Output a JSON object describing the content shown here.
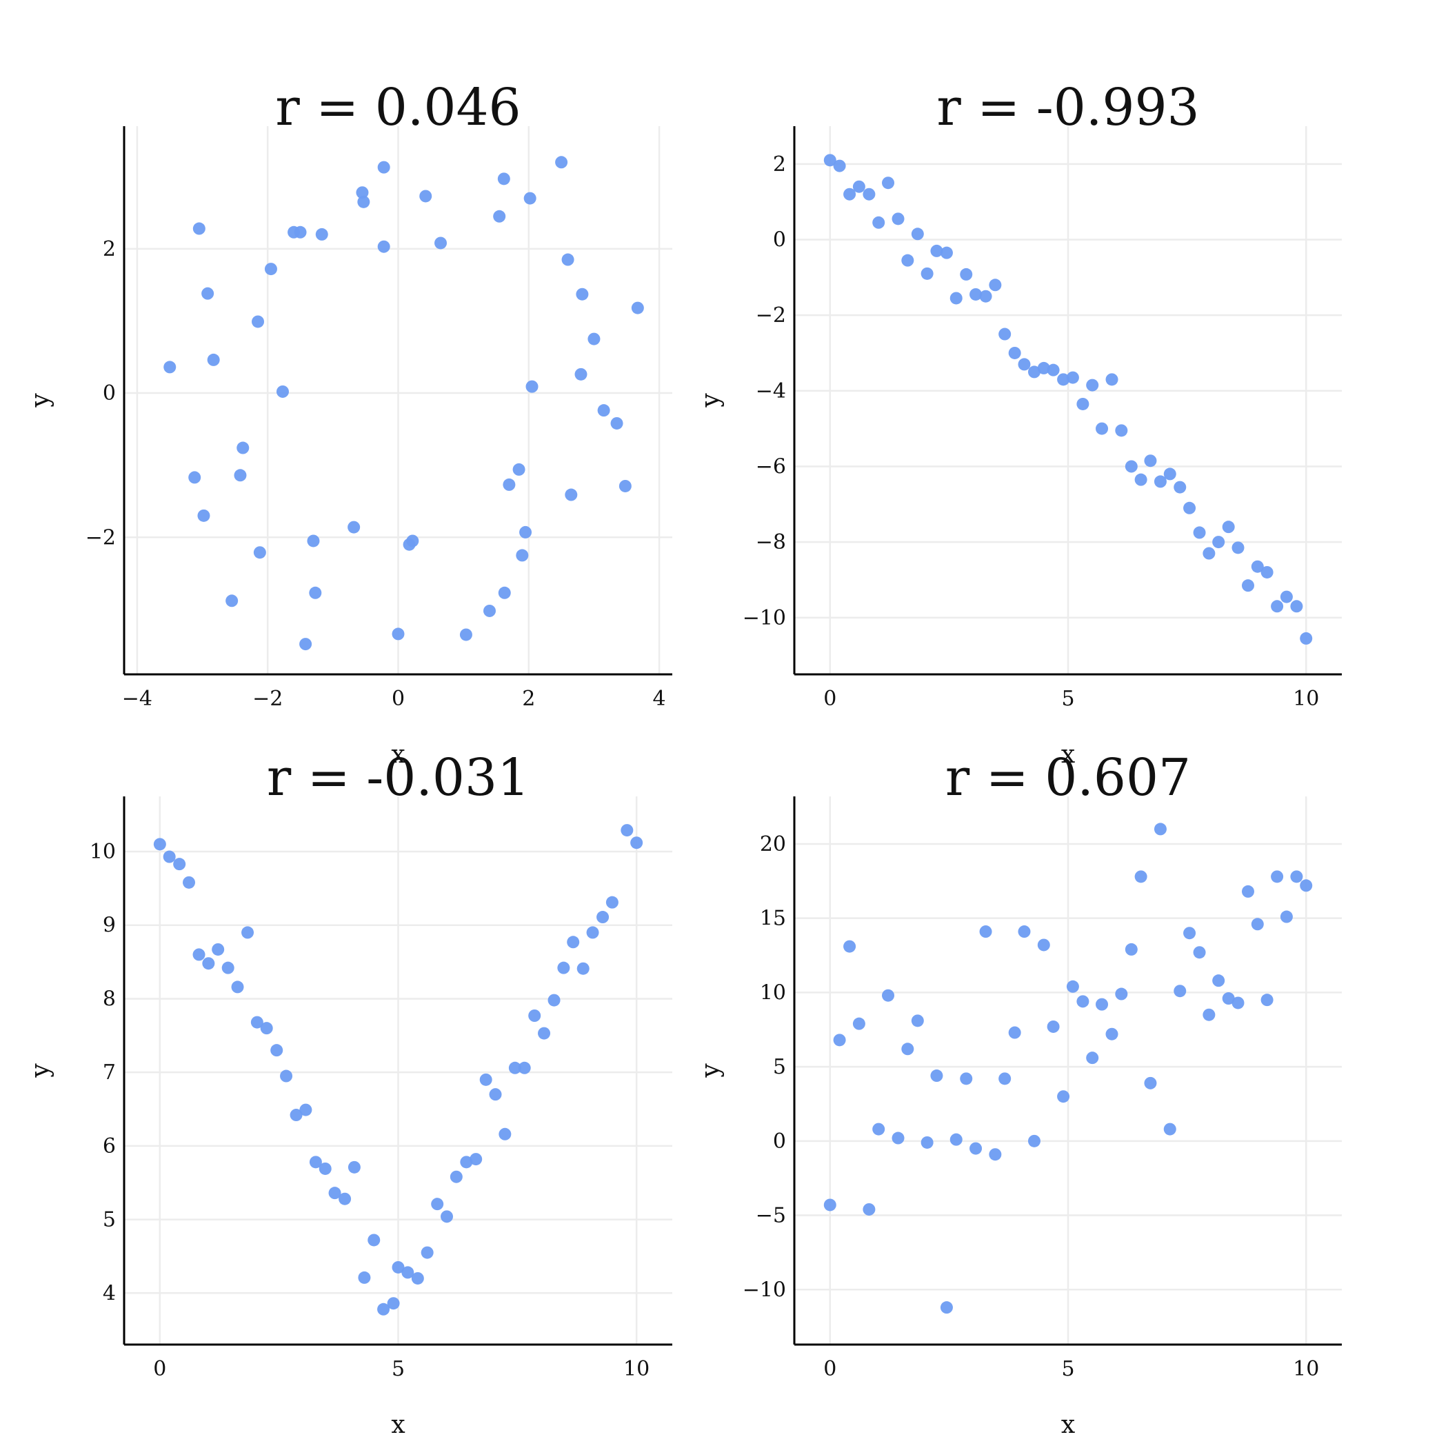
{
  "colors": {
    "marker": "#6d9cf2",
    "grid": "#ececec",
    "axis": "#000000"
  },
  "chart_data": [
    {
      "type": "scatter",
      "title": "r = 0.046",
      "xlabel": "x",
      "ylabel": "y",
      "xlim": [
        -4.2,
        4.2
      ],
      "ylim": [
        -3.9,
        3.7
      ],
      "xticks": [
        -4,
        -2,
        0,
        2,
        4
      ],
      "xtick_labels": [
        "−4",
        "−2",
        "0",
        "2",
        "4"
      ],
      "yticks": [
        -2,
        0,
        2
      ],
      "ytick_labels": [
        "−2",
        "0",
        "2"
      ],
      "grid": true,
      "points": [
        [
          -3.5,
          0.36
        ],
        [
          -3.05,
          2.28
        ],
        [
          -2.92,
          1.38
        ],
        [
          -2.83,
          0.46
        ],
        [
          -3.12,
          -1.17
        ],
        [
          -2.98,
          -1.7
        ],
        [
          -2.55,
          -2.88
        ],
        [
          -2.38,
          -0.76
        ],
        [
          -2.42,
          -1.14
        ],
        [
          -2.15,
          0.99
        ],
        [
          -2.12,
          -2.21
        ],
        [
          -1.95,
          1.72
        ],
        [
          -1.77,
          0.02
        ],
        [
          -1.6,
          2.23
        ],
        [
          -1.5,
          2.23
        ],
        [
          -1.17,
          2.2
        ],
        [
          -1.3,
          -2.05
        ],
        [
          -1.27,
          -2.77
        ],
        [
          -1.42,
          -3.48
        ],
        [
          -0.55,
          2.78
        ],
        [
          -0.53,
          2.65
        ],
        [
          -0.22,
          3.13
        ],
        [
          -0.22,
          2.03
        ],
        [
          -0.68,
          -1.86
        ],
        [
          0.42,
          2.73
        ],
        [
          0.65,
          2.08
        ],
        [
          0.0,
          -3.34
        ],
        [
          0.17,
          -2.1
        ],
        [
          0.22,
          -2.05
        ],
        [
          1.55,
          2.45
        ],
        [
          1.62,
          2.97
        ],
        [
          2.02,
          2.7
        ],
        [
          2.5,
          3.2
        ],
        [
          2.6,
          1.85
        ],
        [
          2.82,
          1.37
        ],
        [
          3.0,
          0.75
        ],
        [
          3.67,
          1.18
        ],
        [
          2.8,
          0.26
        ],
        [
          2.05,
          0.09
        ],
        [
          3.15,
          -0.24
        ],
        [
          3.35,
          -0.42
        ],
        [
          3.48,
          -1.29
        ],
        [
          2.65,
          -1.41
        ],
        [
          1.85,
          -1.06
        ],
        [
          1.7,
          -1.27
        ],
        [
          1.95,
          -1.93
        ],
        [
          1.9,
          -2.25
        ],
        [
          1.63,
          -2.77
        ],
        [
          1.4,
          -3.02
        ],
        [
          1.04,
          -3.35
        ]
      ]
    },
    {
      "type": "scatter",
      "title": "r = -0.993",
      "xlabel": "x",
      "ylabel": "y",
      "xlim": [
        -0.75,
        10.75
      ],
      "ylim": [
        -11.5,
        3.0
      ],
      "xticks": [
        0,
        5,
        10
      ],
      "xtick_labels": [
        "0",
        "5",
        "10"
      ],
      "yticks": [
        -10,
        -8,
        -6,
        -4,
        -2,
        0,
        2
      ],
      "ytick_labels": [
        "−10",
        "−8",
        "−6",
        "−4",
        "−2",
        "0",
        "2"
      ],
      "grid": true,
      "points": [
        [
          0.0,
          2.1
        ],
        [
          0.2,
          1.95
        ],
        [
          0.41,
          1.2
        ],
        [
          0.61,
          1.4
        ],
        [
          0.82,
          1.2
        ],
        [
          1.02,
          0.45
        ],
        [
          1.22,
          1.5
        ],
        [
          1.43,
          0.55
        ],
        [
          1.63,
          -0.55
        ],
        [
          1.84,
          0.15
        ],
        [
          2.04,
          -0.9
        ],
        [
          2.24,
          -0.3
        ],
        [
          2.45,
          -0.35
        ],
        [
          2.65,
          -1.55
        ],
        [
          2.86,
          -0.92
        ],
        [
          3.06,
          -1.45
        ],
        [
          3.27,
          -1.5
        ],
        [
          3.47,
          -1.2
        ],
        [
          3.67,
          -2.5
        ],
        [
          3.88,
          -3.0
        ],
        [
          4.08,
          -3.3
        ],
        [
          4.29,
          -3.5
        ],
        [
          4.49,
          -3.4
        ],
        [
          4.69,
          -3.45
        ],
        [
          4.9,
          -3.7
        ],
        [
          5.1,
          -3.65
        ],
        [
          5.31,
          -4.35
        ],
        [
          5.51,
          -3.85
        ],
        [
          5.71,
          -5.0
        ],
        [
          5.92,
          -3.7
        ],
        [
          6.12,
          -5.05
        ],
        [
          6.33,
          -6.0
        ],
        [
          6.53,
          -6.35
        ],
        [
          6.73,
          -5.85
        ],
        [
          6.94,
          -6.4
        ],
        [
          7.14,
          -6.2
        ],
        [
          7.35,
          -6.55
        ],
        [
          7.55,
          -7.1
        ],
        [
          7.76,
          -7.75
        ],
        [
          7.96,
          -8.3
        ],
        [
          8.16,
          -8.0
        ],
        [
          8.37,
          -7.6
        ],
        [
          8.57,
          -8.15
        ],
        [
          8.78,
          -9.15
        ],
        [
          8.98,
          -8.65
        ],
        [
          9.18,
          -8.8
        ],
        [
          9.39,
          -9.7
        ],
        [
          9.59,
          -9.45
        ],
        [
          9.8,
          -9.7
        ],
        [
          10.0,
          -10.55
        ]
      ]
    },
    {
      "type": "scatter",
      "title": "r = -0.031",
      "xlabel": "x",
      "ylabel": "y",
      "xlim": [
        -0.75,
        10.75
      ],
      "ylim": [
        3.3,
        10.75
      ],
      "xticks": [
        0,
        5,
        10
      ],
      "xtick_labels": [
        "0",
        "5",
        "10"
      ],
      "yticks": [
        4,
        5,
        6,
        7,
        8,
        9,
        10
      ],
      "ytick_labels": [
        "4",
        "5",
        "6",
        "7",
        "8",
        "9",
        "10"
      ],
      "grid": true,
      "points": [
        [
          0.0,
          10.1
        ],
        [
          0.2,
          9.93
        ],
        [
          0.41,
          9.83
        ],
        [
          0.61,
          9.58
        ],
        [
          0.82,
          8.6
        ],
        [
          1.02,
          8.48
        ],
        [
          1.22,
          8.67
        ],
        [
          1.43,
          8.42
        ],
        [
          1.63,
          8.16
        ],
        [
          1.84,
          8.9
        ],
        [
          2.04,
          7.68
        ],
        [
          2.24,
          7.6
        ],
        [
          2.45,
          7.3
        ],
        [
          2.65,
          6.95
        ],
        [
          2.86,
          6.42
        ],
        [
          3.06,
          6.49
        ],
        [
          3.27,
          5.78
        ],
        [
          3.47,
          5.69
        ],
        [
          3.67,
          5.36
        ],
        [
          3.88,
          5.28
        ],
        [
          4.08,
          5.71
        ],
        [
          4.29,
          4.21
        ],
        [
          4.49,
          4.72
        ],
        [
          4.69,
          3.78
        ],
        [
          4.9,
          3.86
        ],
        [
          5.0,
          4.35
        ],
        [
          5.2,
          4.28
        ],
        [
          5.41,
          4.2
        ],
        [
          5.61,
          4.55
        ],
        [
          5.82,
          5.21
        ],
        [
          6.02,
          5.04
        ],
        [
          6.22,
          5.58
        ],
        [
          6.43,
          5.78
        ],
        [
          6.63,
          5.82
        ],
        [
          6.84,
          6.9
        ],
        [
          7.04,
          6.7
        ],
        [
          7.24,
          6.16
        ],
        [
          7.45,
          7.06
        ],
        [
          7.65,
          7.06
        ],
        [
          7.86,
          7.77
        ],
        [
          8.06,
          7.53
        ],
        [
          8.27,
          7.98
        ],
        [
          8.47,
          8.42
        ],
        [
          8.67,
          8.77
        ],
        [
          8.88,
          8.41
        ],
        [
          9.08,
          8.9
        ],
        [
          9.29,
          9.11
        ],
        [
          9.49,
          9.31
        ],
        [
          9.8,
          10.29
        ],
        [
          10.0,
          10.12
        ]
      ]
    },
    {
      "type": "scatter",
      "title": "r = 0.607",
      "xlabel": "x",
      "ylabel": "y",
      "xlim": [
        -0.75,
        10.75
      ],
      "ylim": [
        -13.7,
        23.2
      ],
      "xticks": [
        0,
        5,
        10
      ],
      "xtick_labels": [
        "0",
        "5",
        "10"
      ],
      "yticks": [
        -10,
        -5,
        0,
        5,
        10,
        15,
        20
      ],
      "ytick_labels": [
        "−10",
        "−5",
        "0",
        "5",
        "10",
        "15",
        "20"
      ],
      "grid": true,
      "points": [
        [
          0.0,
          -4.3
        ],
        [
          0.2,
          6.8
        ],
        [
          0.41,
          13.1
        ],
        [
          0.61,
          7.9
        ],
        [
          0.82,
          -4.6
        ],
        [
          1.02,
          0.8
        ],
        [
          1.22,
          9.8
        ],
        [
          1.43,
          0.2
        ],
        [
          1.63,
          6.2
        ],
        [
          1.84,
          8.1
        ],
        [
          2.04,
          -0.1
        ],
        [
          2.24,
          4.4
        ],
        [
          2.45,
          -11.2
        ],
        [
          2.65,
          0.1
        ],
        [
          2.86,
          4.2
        ],
        [
          3.06,
          -0.5
        ],
        [
          3.27,
          14.1
        ],
        [
          3.47,
          -0.9
        ],
        [
          3.67,
          4.2
        ],
        [
          3.88,
          7.3
        ],
        [
          4.08,
          14.1
        ],
        [
          4.29,
          0.0
        ],
        [
          4.49,
          13.2
        ],
        [
          4.69,
          7.7
        ],
        [
          4.9,
          3.0
        ],
        [
          5.1,
          10.4
        ],
        [
          5.31,
          9.4
        ],
        [
          5.51,
          5.6
        ],
        [
          5.71,
          9.2
        ],
        [
          5.92,
          7.2
        ],
        [
          6.12,
          9.9
        ],
        [
          6.33,
          12.9
        ],
        [
          6.53,
          17.8
        ],
        [
          6.73,
          3.9
        ],
        [
          6.94,
          21.0
        ],
        [
          7.14,
          0.8
        ],
        [
          7.35,
          10.1
        ],
        [
          7.55,
          14.0
        ],
        [
          7.76,
          12.7
        ],
        [
          7.96,
          8.5
        ],
        [
          8.16,
          10.8
        ],
        [
          8.37,
          9.6
        ],
        [
          8.57,
          9.3
        ],
        [
          8.78,
          16.8
        ],
        [
          8.98,
          14.6
        ],
        [
          9.18,
          9.5
        ],
        [
          9.39,
          17.8
        ],
        [
          9.59,
          15.1
        ],
        [
          9.8,
          17.8
        ],
        [
          10.0,
          17.2
        ]
      ]
    }
  ]
}
